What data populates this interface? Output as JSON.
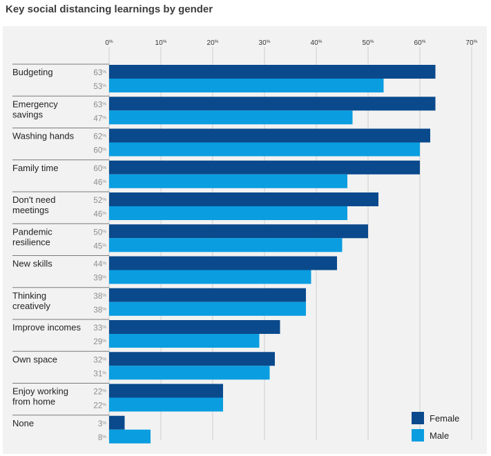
{
  "title": "Key social distancing learnings by gender",
  "colors": {
    "female": "#0a4a8c",
    "male": "#0a9de0",
    "grid": "#cfcfcf",
    "separator": "#7a7a7a",
    "panel": "#f2f2f2"
  },
  "chart_data": {
    "type": "bar",
    "orientation": "horizontal",
    "xlim": [
      0,
      70
    ],
    "ticks": [
      0,
      10,
      20,
      30,
      40,
      50,
      60,
      70
    ],
    "tick_unit": "%",
    "categories": [
      [
        "Budgeting"
      ],
      [
        "Emergency",
        "savings"
      ],
      [
        "Washing hands"
      ],
      [
        "Family time"
      ],
      [
        "Don't need",
        "meetings"
      ],
      [
        "Pandemic",
        "resilience"
      ],
      [
        "New skills"
      ],
      [
        "Thinking",
        "creatively"
      ],
      [
        "Improve incomes"
      ],
      [
        "Own space"
      ],
      [
        "Enjoy working",
        "from home"
      ],
      [
        "None"
      ]
    ],
    "series": [
      {
        "name": "Female",
        "color": "#0a4a8c",
        "values": [
          63,
          63,
          62,
          60,
          52,
          50,
          44,
          38,
          33,
          32,
          22,
          3
        ]
      },
      {
        "name": "Male",
        "color": "#0a9de0",
        "values": [
          53,
          47,
          60,
          46,
          46,
          45,
          39,
          38,
          29,
          31,
          22,
          8
        ]
      }
    ],
    "grid": true,
    "legend_position": "bottom-right"
  }
}
